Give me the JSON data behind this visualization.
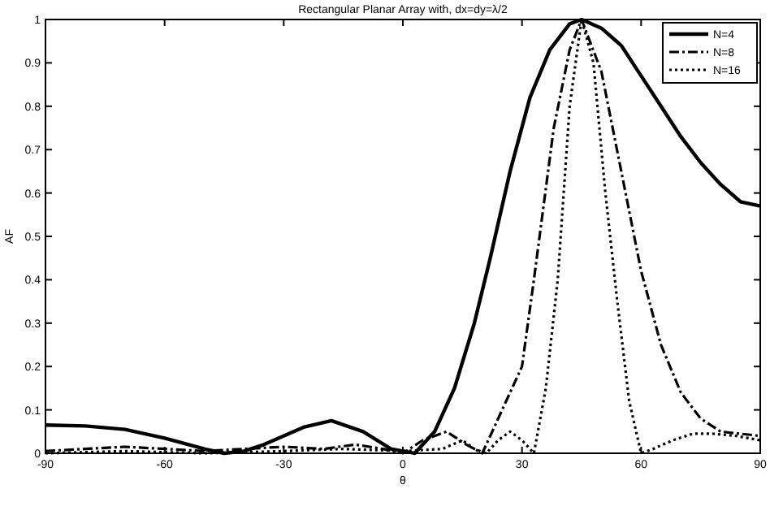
{
  "chart_data": {
    "type": "line",
    "title": "Rectangular Planar Array with, dx=dy=λ/2",
    "xlabel": "θ",
    "ylabel": "AF",
    "xlim": [
      -90,
      90
    ],
    "xticks": [
      -90,
      -60,
      -30,
      0,
      30,
      60,
      90
    ],
    "ylim": [
      0,
      1
    ],
    "yticks": [
      0,
      0.1,
      0.2,
      0.3,
      0.4,
      0.5,
      0.6,
      0.7,
      0.8,
      0.9,
      1
    ],
    "legend": "top right",
    "grid": false,
    "marker": "none",
    "series": [
      {
        "name": "N=4",
        "color": "#000000",
        "line_style": "solid",
        "x": [
          -90,
          -80,
          -70,
          -60,
          -50,
          -45,
          -40,
          -35,
          -25,
          -18,
          -10,
          -3,
          3,
          8,
          13,
          18,
          22,
          27,
          32,
          37,
          42,
          45,
          50,
          55,
          60,
          65,
          70,
          75,
          80,
          85,
          90
        ],
        "values": [
          0.065,
          0.063,
          0.055,
          0.035,
          0.01,
          0,
          0.005,
          0.02,
          0.06,
          0.075,
          0.05,
          0.01,
          0,
          0.05,
          0.15,
          0.3,
          0.45,
          0.65,
          0.82,
          0.93,
          0.99,
          1,
          0.98,
          0.94,
          0.87,
          0.8,
          0.73,
          0.67,
          0.62,
          0.58,
          0.57
        ]
      },
      {
        "name": "N=8",
        "color": "#000000",
        "line_style": "dashdot",
        "x": [
          -90,
          -80,
          -70,
          -60,
          -50,
          -40,
          -30,
          -20,
          -12,
          -5,
          0,
          5,
          11,
          16,
          20,
          25,
          30,
          33,
          38,
          42,
          45,
          50,
          55,
          60,
          65,
          70,
          75,
          80,
          85,
          90
        ],
        "values": [
          0.005,
          0.01,
          0.015,
          0.01,
          0.005,
          0.01,
          0.015,
          0.01,
          0.02,
          0.01,
          0,
          0.03,
          0.05,
          0.02,
          0,
          0.1,
          0.2,
          0.4,
          0.75,
          0.93,
          1,
          0.88,
          0.65,
          0.42,
          0.25,
          0.14,
          0.08,
          0.05,
          0.045,
          0.04
        ]
      },
      {
        "name": "N=16",
        "color": "#000000",
        "line_style": "dotted",
        "x": [
          -90,
          -70,
          -50,
          -30,
          -15,
          0,
          10,
          15,
          18,
          21,
          24,
          27,
          30,
          33,
          36,
          39,
          42,
          45,
          48,
          51,
          54,
          57,
          60,
          63,
          68,
          73,
          78,
          84,
          90
        ],
        "values": [
          0,
          0.005,
          0,
          0.005,
          0.01,
          0.005,
          0.01,
          0.03,
          0.01,
          0,
          0.03,
          0.05,
          0.03,
          0,
          0.15,
          0.4,
          0.8,
          1,
          0.9,
          0.6,
          0.35,
          0.12,
          0,
          0.01,
          0.03,
          0.045,
          0.045,
          0.04,
          0.03
        ]
      }
    ]
  }
}
